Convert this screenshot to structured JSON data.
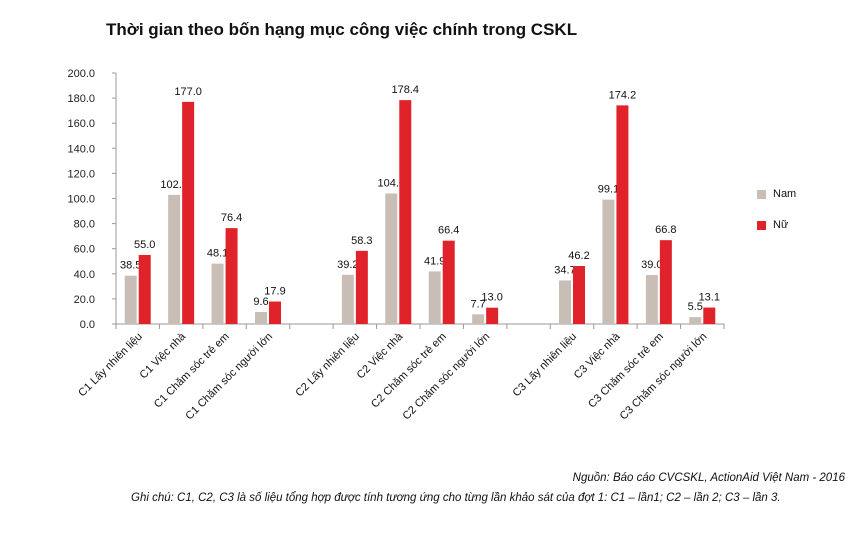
{
  "chart_data": {
    "type": "bar",
    "title": "Thời gian theo bốn hạng mục công việc chính trong CSKL",
    "categories": [
      "C1 Lấy nhiên liệu",
      "C1 Việc nhà",
      "C1 Chăm sóc trẻ em",
      "C1 Chăm sóc người lớn",
      "C2 Lấy nhiên liệu",
      "C2 Việc nhà",
      "C2 Chăm sóc trẻ em",
      "C2 Chăm sóc người lớn",
      "C3 Lấy nhiên liệu",
      "C3 Việc nhà",
      "C3 Chăm sóc trẻ em",
      "C3 Chăm sóc người lớn"
    ],
    "groups": [
      [
        0,
        1,
        2,
        3
      ],
      [
        4,
        5,
        6,
        7
      ],
      [
        8,
        9,
        10,
        11
      ]
    ],
    "series": [
      {
        "name": "Nam",
        "color": "#c8beb6",
        "values": [
          38.5,
          102.9,
          48.1,
          9.6,
          39.2,
          104.0,
          41.9,
          7.7,
          34.7,
          99.1,
          39.0,
          5.5
        ]
      },
      {
        "name": "Nữ",
        "color": "#e0232a",
        "values": [
          55.0,
          177.0,
          76.4,
          17.9,
          58.3,
          178.4,
          66.4,
          13.0,
          46.2,
          174.2,
          66.8,
          13.1
        ]
      }
    ],
    "data_labels": [
      [
        "38.5",
        "102.9",
        "48.1",
        "9.6",
        "39.2",
        "104.0",
        "41.9",
        "7.7",
        "34.7",
        "99.1",
        "39.0",
        "5.5"
      ],
      [
        "55.0",
        "177.0",
        "76.4",
        "17.9",
        "58.3",
        "178.4",
        "66.4",
        "13.0",
        "46.2",
        "174.2",
        "66.8",
        "13.1"
      ]
    ],
    "yticks": [
      "0.0",
      "20.0",
      "40.0",
      "60.0",
      "80.0",
      "100.0",
      "120.0",
      "140.0",
      "160.0",
      "180.0",
      "200.0"
    ],
    "ylim": [
      0,
      200
    ],
    "grid": false,
    "legend_position": "right"
  },
  "legend": [
    {
      "label": "Nam",
      "color": "#c8beb6"
    },
    {
      "label": "Nữ",
      "color": "#e0232a"
    }
  ],
  "footer": {
    "source": "Nguồn: Báo cáo CVCSKL, ActionAid Việt Nam - 2016",
    "note": "Ghi chú: C1, C2, C3 là số liệu tổng hợp được tính tương ứng cho từng lần khảo sát của đợt 1: C1 – lần1; C2 – lần 2; C3 – lần 3."
  }
}
